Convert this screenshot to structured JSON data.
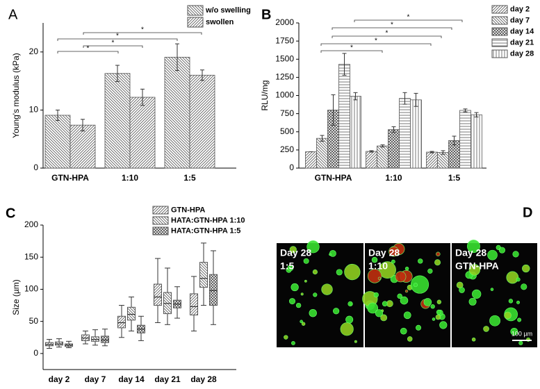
{
  "chart_data": [
    {
      "type": "bar",
      "panel": "A",
      "y_label": "Young's modulus (kPa)",
      "categories": [
        "GTN-HPA",
        "1:10",
        "1:5"
      ],
      "series": [
        {
          "name": "w/o swelling",
          "color": "#555555",
          "pattern": "back",
          "values": [
            9.1,
            16.3,
            19.1
          ],
          "errors": [
            0.9,
            1.4,
            2.3
          ]
        },
        {
          "name": "swollen",
          "color": "#555555",
          "pattern": "forward",
          "values": [
            7.4,
            12.2,
            16.0
          ],
          "errors": [
            1.0,
            1.4,
            0.9
          ]
        }
      ],
      "ylim": [
        0,
        25
      ],
      "yticks": [
        0,
        10,
        20
      ],
      "legend": "upper right",
      "annotations": [
        "*",
        "*",
        "*",
        "*"
      ]
    },
    {
      "type": "bar",
      "panel": "B",
      "y_label": "RLU/mg",
      "categories": [
        "GTN-HPA",
        "1:10",
        "1:5"
      ],
      "series": [
        {
          "name": "day 2",
          "color": "#555555",
          "pattern": "forward",
          "values": [
            225,
            230,
            220
          ],
          "errors": [
            0,
            10,
            10
          ]
        },
        {
          "name": "day 7",
          "color": "#555555",
          "pattern": "back",
          "values": [
            410,
            305,
            215
          ],
          "errors": [
            40,
            15,
            25
          ]
        },
        {
          "name": "day 14",
          "color": "#444444",
          "pattern": "cross",
          "values": [
            800,
            530,
            380
          ],
          "errors": [
            210,
            40,
            60
          ]
        },
        {
          "name": "day 21",
          "color": "#555555",
          "pattern": "horizontal",
          "values": [
            1430,
            960,
            795
          ],
          "errors": [
            150,
            80,
            20
          ]
        },
        {
          "name": "day 28",
          "color": "#555555",
          "pattern": "vertical",
          "values": [
            990,
            940,
            735
          ],
          "errors": [
            50,
            90,
            30
          ]
        }
      ],
      "ylim": [
        0,
        2000
      ],
      "yticks": [
        0,
        250,
        500,
        750,
        1000,
        1250,
        1500,
        1750,
        2000
      ],
      "legend": "upper right",
      "annotations": [
        "*",
        "*",
        "*",
        "*",
        "*"
      ]
    },
    {
      "type": "box",
      "panel": "C",
      "y_label": "Size (µm)",
      "categories": [
        "day 2",
        "day 7",
        "day 14",
        "day 21",
        "day 28"
      ],
      "series": [
        {
          "name": "GTN-HPA",
          "color": "#555555",
          "pattern": "forward",
          "values": [
            [
              8,
              12,
              14,
              17,
              22
            ],
            [
              15,
              20,
              24,
              29,
              35
            ],
            [
              25,
              40,
              48,
              58,
              75
            ],
            [
              48,
              75,
              88,
              108,
              148
            ],
            [
              35,
              60,
              73,
              93,
              120
            ]
          ]
        },
        {
          "name": "HATA:GTN-HPA 1:10",
          "color": "#555555",
          "pattern": "back",
          "values": [
            [
              10,
              13,
              15,
              18,
              23
            ],
            [
              13,
              19,
              22,
              26,
              37
            ],
            [
              35,
              52,
              61,
              72,
              88
            ],
            [
              45,
              62,
              78,
              95,
              133
            ],
            [
              75,
              103,
              117,
              142,
              172
            ]
          ]
        },
        {
          "name": "HATA:GTN-HPA 1:5",
          "color": "#444444",
          "pattern": "cross",
          "values": [
            [
              9,
              11,
              13,
              15,
              19
            ],
            [
              12,
              17,
              21,
              27,
              38
            ],
            [
              20,
              32,
              38,
              44,
              58
            ],
            [
              55,
              71,
              77,
              83,
              104
            ],
            [
              45,
              75,
              98,
              123,
              160
            ]
          ]
        }
      ],
      "ylim": [
        -25,
        200
      ],
      "yticks": [
        0,
        50,
        100,
        150,
        200
      ],
      "legend": "upper right"
    }
  ],
  "micrograph": {
    "panel": "D",
    "captions": [
      [
        "Day 28",
        "1:5"
      ],
      [
        "Day 28",
        "1:10"
      ],
      [
        "Day 28",
        "GTN-HPA"
      ]
    ],
    "scale_bar": "100 µm"
  }
}
